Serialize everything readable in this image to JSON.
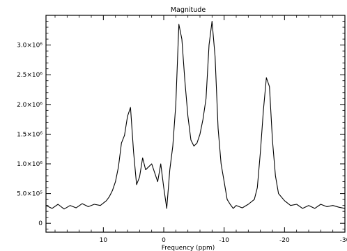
{
  "chart_data": {
    "type": "line",
    "title": "Magnitude",
    "xlabel": "Frequency (ppm)",
    "ylabel": "",
    "xlim": [
      19.5,
      -30
    ],
    "ylim": [
      -150000,
      3500000
    ],
    "x_ticks": [
      10,
      0,
      -10,
      -20,
      -30
    ],
    "y_ticks": [
      0,
      500000,
      1000000,
      1500000,
      2000000,
      2500000,
      3000000
    ],
    "x_tick_labels": [
      "10",
      "0",
      "-10",
      "-20",
      "-30"
    ],
    "y_tick_labels": [
      "0",
      "5.0×10⁵",
      "1.0×10⁶",
      "1.5×10⁶",
      "2.0×10⁶",
      "2.5×10⁶",
      "3.0×10⁶"
    ],
    "grid": false,
    "legend": "none",
    "series": [
      {
        "color": "#000000",
        "x": [
          19.5,
          18.5,
          17.5,
          16.5,
          15.5,
          14.5,
          13.5,
          12.5,
          11.5,
          10.5,
          9.5,
          9,
          8.5,
          8,
          7.5,
          7,
          6.5,
          6,
          5.5,
          5,
          4.5,
          4,
          3.5,
          3,
          2.5,
          2,
          1.5,
          1,
          0.5,
          0,
          -0.5,
          -1,
          -1.5,
          -2,
          -2.5,
          -3,
          -3.5,
          -4,
          -4.5,
          -5,
          -5.5,
          -6,
          -6.5,
          -7,
          -7.5,
          -8,
          -8.5,
          -9,
          -9.5,
          -10,
          -10.5,
          -11,
          -11.5,
          -12,
          -13,
          -14,
          -15,
          -15.5,
          -16,
          -16.5,
          -17,
          -17.5,
          -18,
          -18.5,
          -19,
          -20,
          -21,
          -22,
          -23,
          -24,
          -25,
          -26,
          -27,
          -28,
          -29,
          -30
        ],
        "y": [
          300000,
          250000,
          320000,
          240000,
          300000,
          260000,
          330000,
          280000,
          320000,
          300000,
          380000,
          450000,
          550000,
          700000,
          950000,
          1350000,
          1480000,
          1800000,
          1950000,
          1200000,
          650000,
          780000,
          1100000,
          900000,
          950000,
          1000000,
          850000,
          700000,
          1000000,
          600000,
          250000,
          900000,
          1300000,
          2000000,
          3350000,
          3100000,
          2400000,
          1800000,
          1400000,
          1300000,
          1350000,
          1500000,
          1750000,
          2100000,
          3000000,
          3400000,
          2800000,
          1600000,
          1000000,
          700000,
          400000,
          320000,
          250000,
          300000,
          260000,
          320000,
          400000,
          600000,
          1200000,
          1900000,
          2450000,
          2300000,
          1400000,
          800000,
          500000,
          380000,
          300000,
          320000,
          250000,
          300000,
          250000,
          320000,
          280000,
          300000,
          270000,
          250000
        ]
      }
    ]
  }
}
